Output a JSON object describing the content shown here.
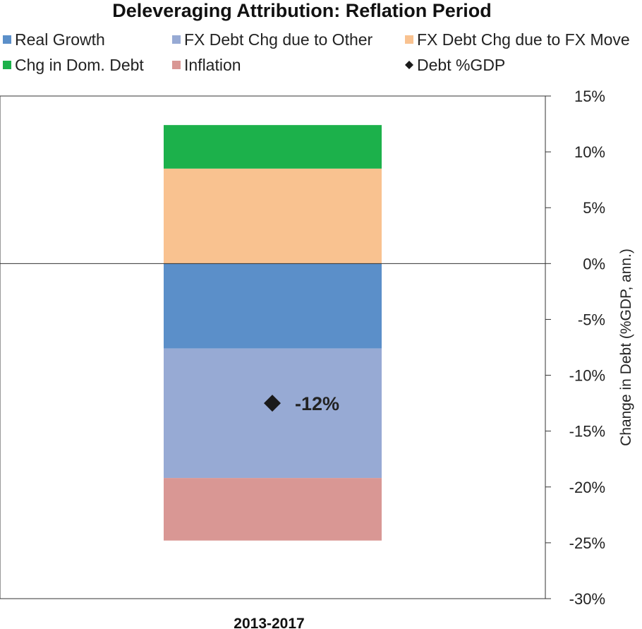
{
  "chart_data": {
    "type": "bar",
    "stacked": true,
    "title": "Deleveraging Attribution: Reflation Period",
    "ylabel": "Change in Debt (%GDP, ann.)",
    "xlabel": "",
    "ylim": [
      -30,
      15
    ],
    "y_ticks": [
      15,
      10,
      5,
      0,
      -5,
      -10,
      -15,
      -20,
      -25,
      -30
    ],
    "tick_suffix": "%",
    "categories": [
      "2013-2017"
    ],
    "legend_position": "top",
    "series": [
      {
        "name": "Real Growth",
        "values": [
          -7.6
        ],
        "color": "#5b8fc9"
      },
      {
        "name": "FX Debt Chg due to Other",
        "values": [
          -11.6
        ],
        "color": "#97aad4"
      },
      {
        "name": "FX Debt Chg due to FX Move",
        "values": [
          8.5
        ],
        "color": "#f9c290"
      },
      {
        "name": "Chg in Dom. Debt",
        "values": [
          3.9
        ],
        "color": "#1cb14b"
      },
      {
        "name": "Inflation",
        "values": [
          -5.6
        ],
        "color": "#d99794"
      }
    ],
    "legend_order": [
      "Real Growth",
      "FX Debt Chg due to Other",
      "FX Debt Chg due to FX Move",
      "Chg in Dom. Debt",
      "Inflation",
      "Debt %GDP"
    ],
    "marker_series": {
      "name": "Debt %GDP",
      "values": [
        -12.5
      ],
      "label": "-12%",
      "color": "#1a1a1a"
    }
  }
}
